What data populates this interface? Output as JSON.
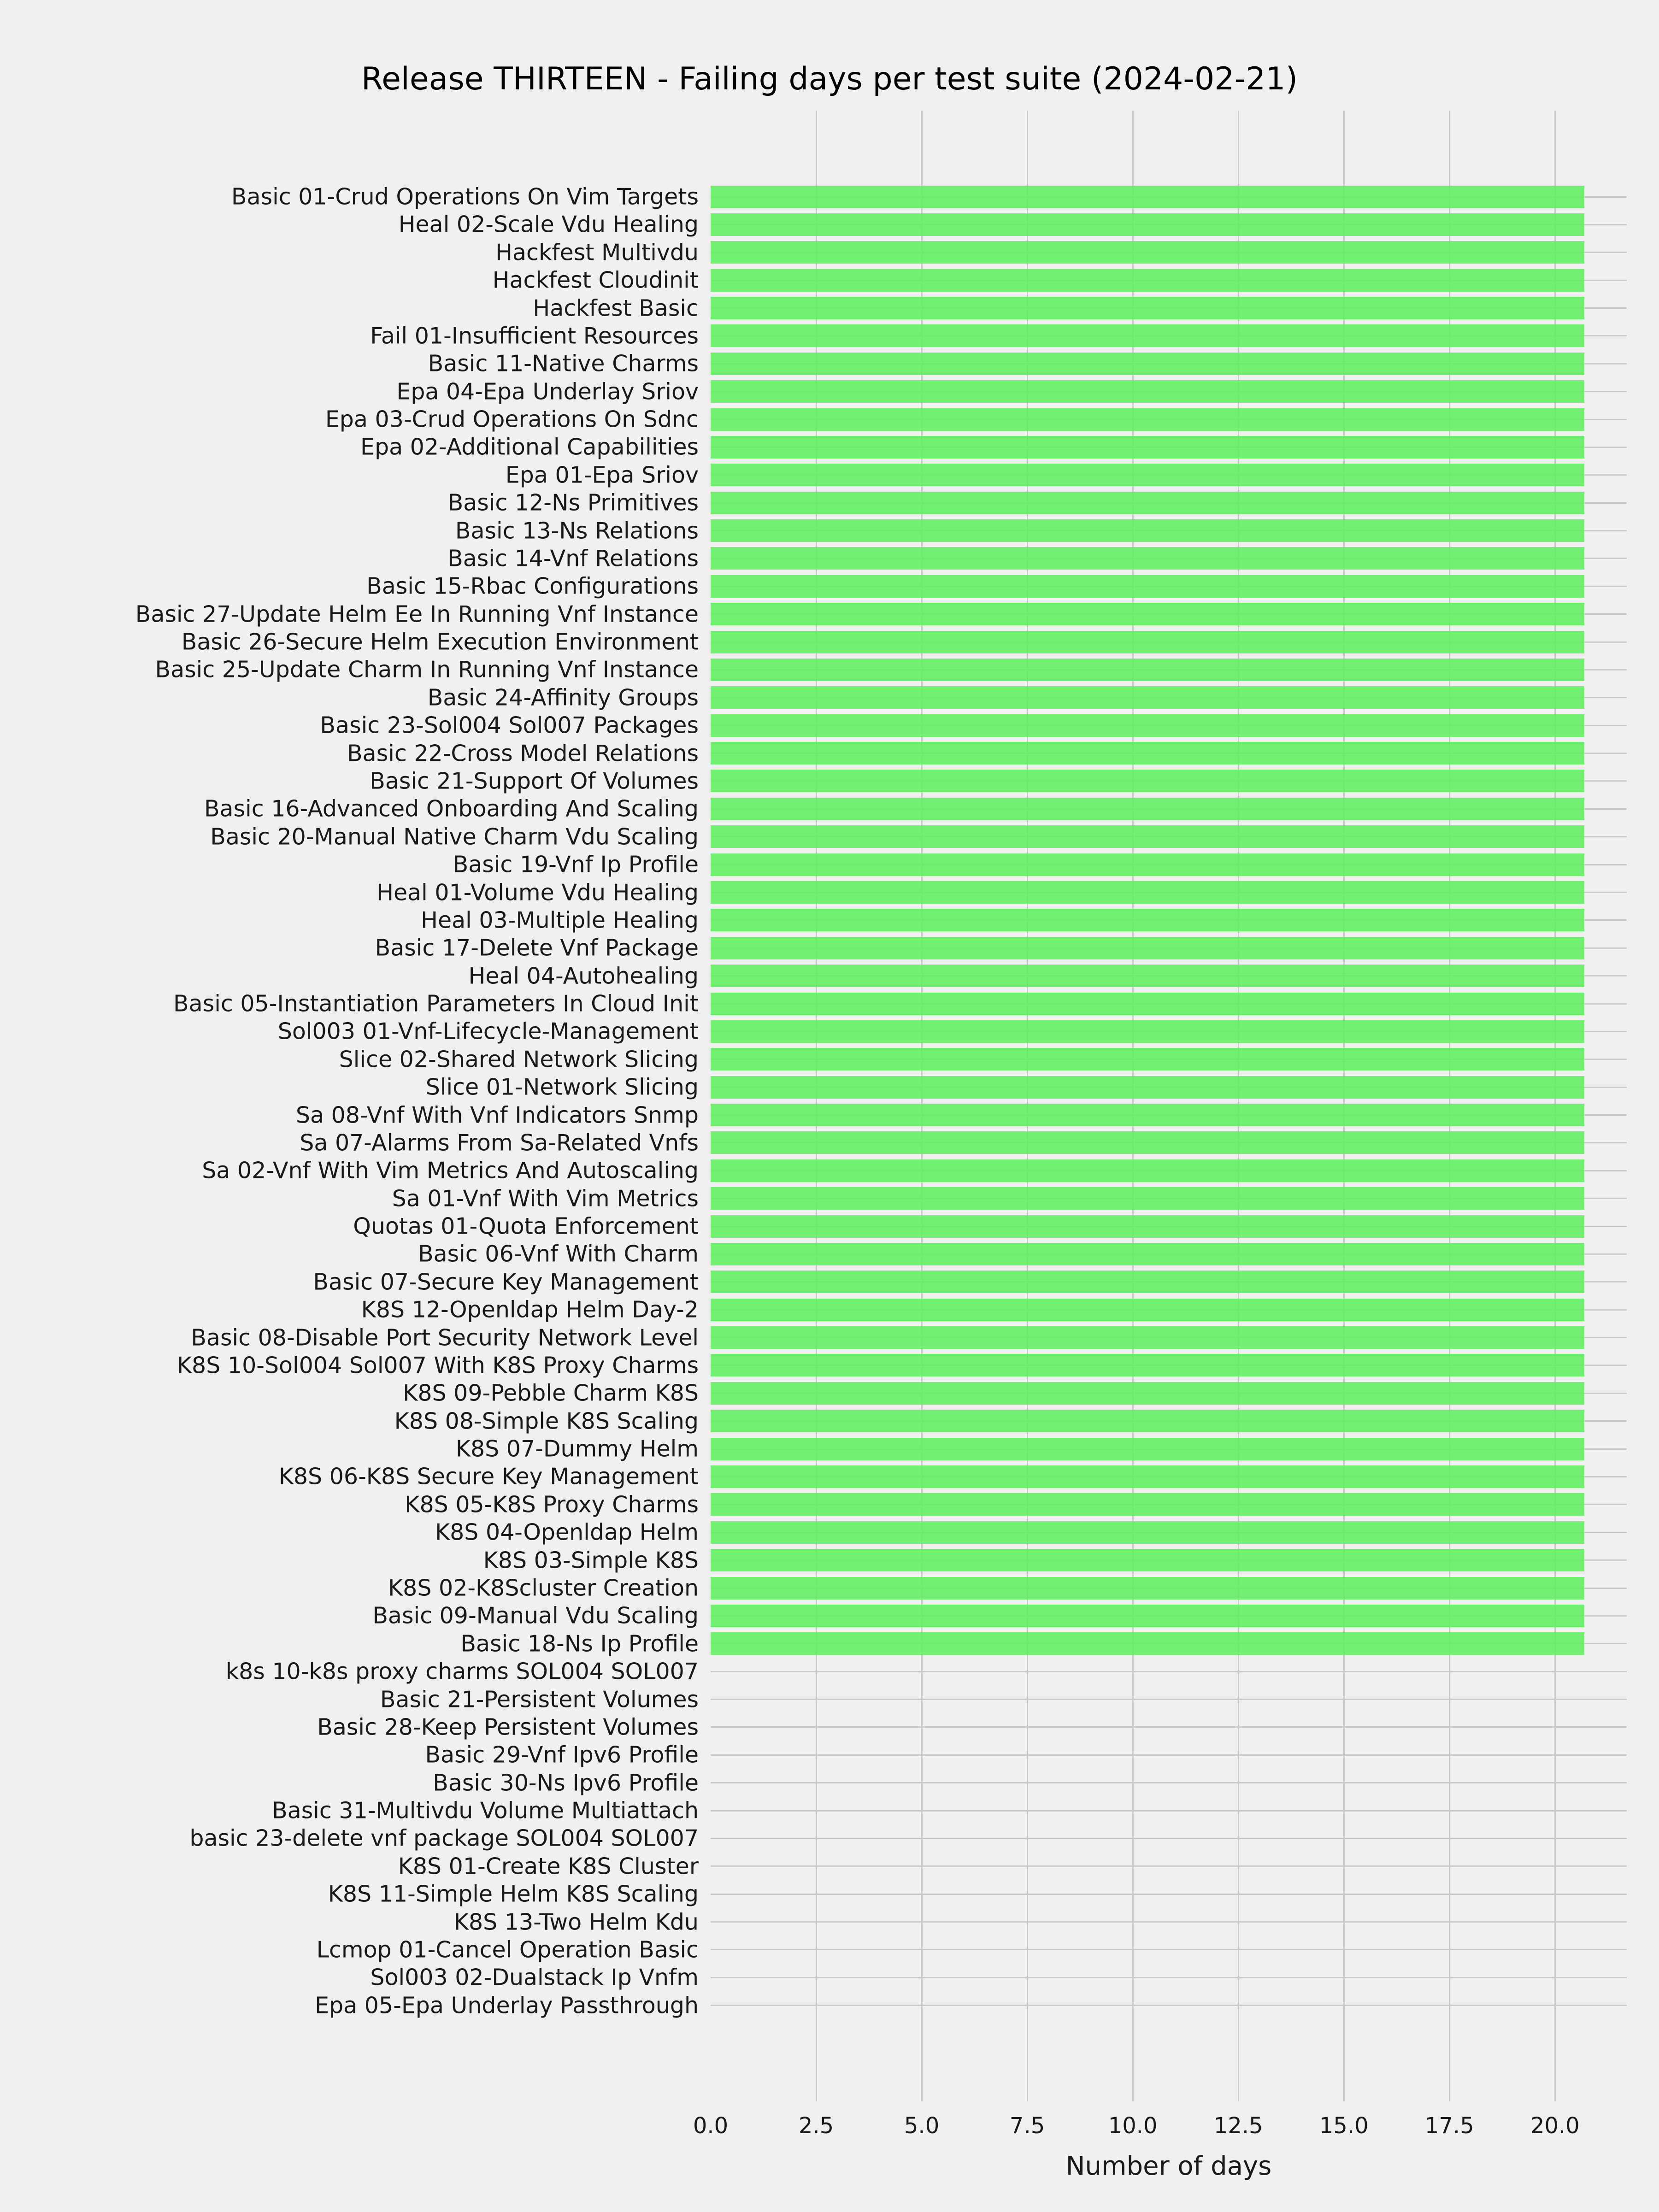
{
  "title": "Release THIRTEEN - Failing days per test suite (2024-02-21)",
  "colors": {
    "background": "#f0f0f0",
    "grid": "#c9c9c9",
    "bar": "#5ff05f",
    "text": "#191919"
  },
  "chart_data": {
    "type": "bar",
    "orientation": "horizontal",
    "title": "Release THIRTEEN - Failing days per test suite (2024-02-21)",
    "xlabel": "Number of days",
    "ylabel": "",
    "xlim": [
      0,
      21.7
    ],
    "xticks": [
      0.0,
      2.5,
      5.0,
      7.5,
      10.0,
      12.5,
      15.0,
      17.5,
      20.0
    ],
    "grid": true,
    "legend": false,
    "bar_value_days": 20.7,
    "categories": [
      "Basic 01-Crud Operations On Vim Targets",
      "Heal 02-Scale Vdu Healing",
      "Hackfest Multivdu",
      "Hackfest Cloudinit",
      "Hackfest Basic",
      "Fail 01-Insufficient Resources",
      "Basic 11-Native Charms",
      "Epa 04-Epa Underlay Sriov",
      "Epa 03-Crud Operations On Sdnc",
      "Epa 02-Additional Capabilities",
      "Epa 01-Epa Sriov",
      "Basic 12-Ns Primitives",
      "Basic 13-Ns Relations",
      "Basic 14-Vnf Relations",
      "Basic 15-Rbac Configurations",
      "Basic 27-Update Helm Ee In Running Vnf Instance",
      "Basic 26-Secure Helm Execution Environment",
      "Basic 25-Update Charm In Running Vnf Instance",
      "Basic 24-Affinity Groups",
      "Basic 23-Sol004 Sol007 Packages",
      "Basic 22-Cross Model Relations",
      "Basic 21-Support Of Volumes",
      "Basic 16-Advanced Onboarding And Scaling",
      "Basic 20-Manual Native Charm Vdu Scaling",
      "Basic 19-Vnf Ip Profile",
      "Heal 01-Volume Vdu Healing",
      "Heal 03-Multiple Healing",
      "Basic 17-Delete Vnf Package",
      "Heal 04-Autohealing",
      "Basic 05-Instantiation Parameters In Cloud Init",
      "Sol003 01-Vnf-Lifecycle-Management",
      "Slice 02-Shared Network Slicing",
      "Slice 01-Network Slicing",
      "Sa 08-Vnf With Vnf Indicators Snmp",
      "Sa 07-Alarms From Sa-Related Vnfs",
      "Sa 02-Vnf With Vim Metrics And Autoscaling",
      "Sa 01-Vnf With Vim Metrics",
      "Quotas 01-Quota Enforcement",
      "Basic 06-Vnf With Charm",
      "Basic 07-Secure Key Management",
      "K8S 12-Openldap Helm Day-2",
      "Basic 08-Disable Port Security Network Level",
      "K8S 10-Sol004 Sol007 With K8S Proxy Charms",
      "K8S 09-Pebble Charm K8S",
      "K8S 08-Simple K8S Scaling",
      "K8S 07-Dummy Helm",
      "K8S 06-K8S Secure Key Management",
      "K8S 05-K8S Proxy Charms",
      "K8S 04-Openldap Helm",
      "K8S 03-Simple K8S",
      "K8S 02-K8Scluster Creation",
      "Basic 09-Manual Vdu Scaling",
      "Basic 18-Ns Ip Profile",
      "k8s 10-k8s proxy charms SOL004 SOL007",
      "Basic 21-Persistent Volumes",
      "Basic 28-Keep Persistent Volumes",
      "Basic 29-Vnf Ipv6 Profile",
      "Basic 30-Ns Ipv6 Profile",
      "Basic 31-Multivdu Volume Multiattach",
      "basic 23-delete vnf package SOL004 SOL007",
      "K8S 01-Create K8S Cluster",
      "K8S 11-Simple Helm K8S Scaling",
      "K8S 13-Two Helm Kdu",
      "Lcmop 01-Cancel Operation Basic",
      "Sol003 02-Dualstack Ip Vnfm",
      "Epa 05-Epa Underlay Passthrough"
    ],
    "values": [
      20.7,
      20.7,
      20.7,
      20.7,
      20.7,
      20.7,
      20.7,
      20.7,
      20.7,
      20.7,
      20.7,
      20.7,
      20.7,
      20.7,
      20.7,
      20.7,
      20.7,
      20.7,
      20.7,
      20.7,
      20.7,
      20.7,
      20.7,
      20.7,
      20.7,
      20.7,
      20.7,
      20.7,
      20.7,
      20.7,
      20.7,
      20.7,
      20.7,
      20.7,
      20.7,
      20.7,
      20.7,
      20.7,
      20.7,
      20.7,
      20.7,
      20.7,
      20.7,
      20.7,
      20.7,
      20.7,
      20.7,
      20.7,
      20.7,
      20.7,
      20.7,
      20.7,
      20.7,
      0,
      0,
      0,
      0,
      0,
      0,
      0,
      0,
      0,
      0,
      0,
      0,
      0
    ]
  }
}
